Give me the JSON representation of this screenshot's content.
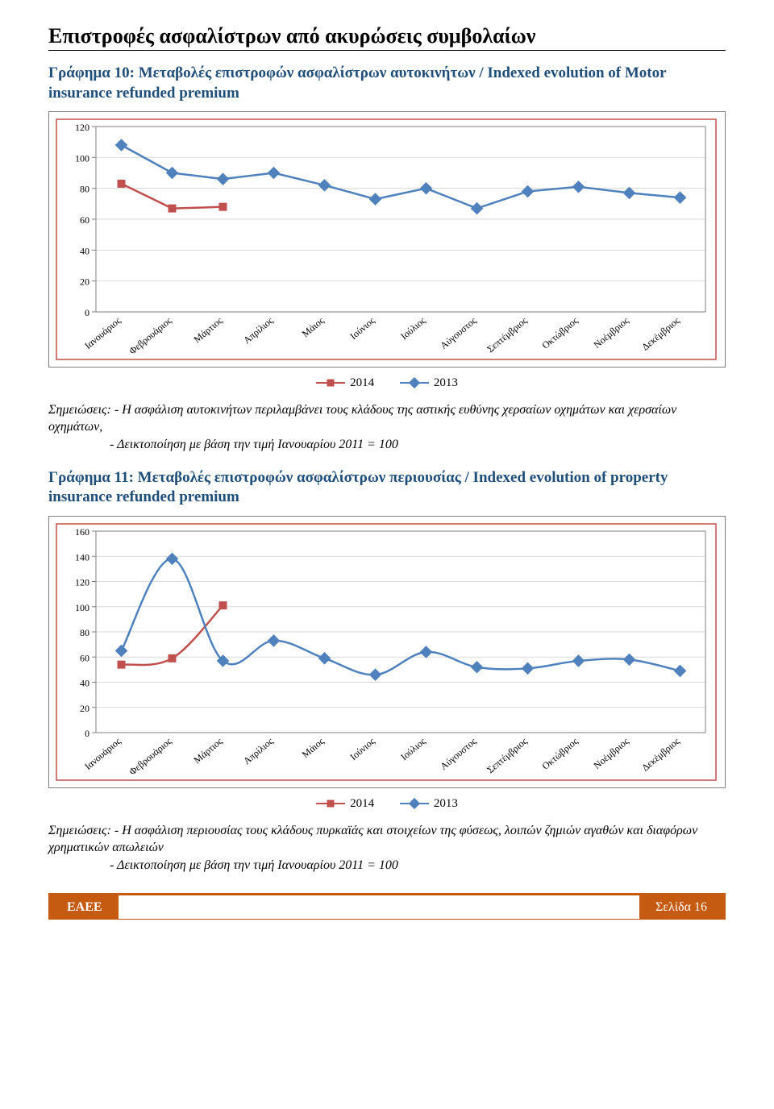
{
  "page": {
    "title": "Επιστροφές ασφαλίστρων από ακυρώσεις συμβολαίων"
  },
  "months": [
    "Ιανουάριος",
    "Φεβρουάριος",
    "Μάρτιος",
    "Απρίλιος",
    "Μάιος",
    "Ιούνιος",
    "Ιούλιος",
    "Αύγουστος",
    "Σεπτέμβριος",
    "Οκτώβριος",
    "Νοέμβριος",
    "Δεκέμβριος"
  ],
  "chart10": {
    "title": "Γράφημα 10: Μεταβολές επιστροφών ασφαλίστρων αυτοκινήτων / Indexed evolution of Motor insurance refunded premium",
    "type": "line",
    "ylim": [
      0,
      120
    ],
    "ytick_step": 20,
    "y_ticks": [
      0,
      20,
      40,
      60,
      80,
      100,
      120
    ],
    "xlim": [
      0.5,
      12.5
    ],
    "series": [
      {
        "name": "2014",
        "color": "#c0504d",
        "marker": "square",
        "line_width": 2.5,
        "values": [
          83,
          67,
          68,
          null,
          null,
          null,
          null,
          null,
          null,
          null,
          null,
          null
        ]
      },
      {
        "name": "2013",
        "color": "#4f81bd",
        "marker": "diamond",
        "line_width": 2.5,
        "values": [
          108,
          90,
          86,
          90,
          82,
          73,
          80,
          67,
          78,
          81,
          77,
          74
        ]
      }
    ],
    "grid_color": "#d9d9d9",
    "plot_border_color": "#808080",
    "outer_border_color": "#c0504d",
    "label_fontsize": 13,
    "tick_fontsize": 12,
    "notes_label": "Σημειώσεις:",
    "notes_line1": " - Η ασφάλιση αυτοκινήτων περιλαμβάνει τους κλάδους της αστικής ευθύνης χερσαίων οχημάτων και χερσαίων οχημάτων,",
    "notes_line2": "- Δεικτοποίηση με βάση την τιμή Ιανουαρίου 2011 = 100"
  },
  "chart11": {
    "title": "Γράφημα 11: Μεταβολές επιστροφών ασφαλίστρων περιουσίας / Indexed evolution of property insurance refunded premium",
    "type": "line",
    "ylim": [
      0,
      160
    ],
    "ytick_step": 20,
    "y_ticks": [
      0,
      20,
      40,
      60,
      80,
      100,
      120,
      140,
      160
    ],
    "xlim": [
      0.5,
      12.5
    ],
    "series": [
      {
        "name": "2014",
        "color": "#c0504d",
        "marker": "square",
        "line_width": 2.5,
        "values": [
          54,
          59,
          101,
          null,
          null,
          null,
          null,
          null,
          null,
          null,
          null,
          null
        ]
      },
      {
        "name": "2013",
        "color": "#4f81bd",
        "marker": "diamond",
        "line_width": 2.5,
        "values": [
          65,
          138,
          57,
          73,
          59,
          46,
          64,
          52,
          51,
          57,
          58,
          49
        ]
      }
    ],
    "grid_color": "#d9d9d9",
    "plot_border_color": "#808080",
    "outer_border_color": "#c0504d",
    "label_fontsize": 13,
    "tick_fontsize": 12,
    "notes_label": "Σημειώσεις:",
    "notes_line1": " - Η ασφάλιση περιουσίας τους κλάδους πυρκαϊάς και στοιχείων της φύσεως, λοιπών ζημιών αγαθών και διαφόρων χρηματικών απωλειών",
    "notes_line2": "- Δεικτοποίηση με βάση την τιμή Ιανουαρίου 2011 = 100"
  },
  "legend": {
    "s1": "2014",
    "s2": "2013"
  },
  "footer": {
    "left": "ΕΑΕΕ",
    "right": "Σελίδα 16",
    "color": "#c55a11"
  }
}
